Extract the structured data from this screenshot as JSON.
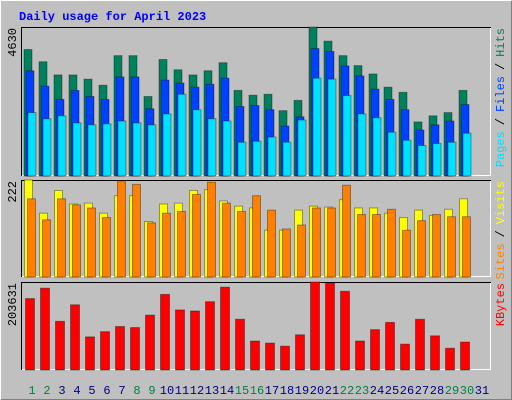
{
  "chart_data": [
    {
      "type": "bar",
      "title": "Daily usage for April 2023",
      "legend_separator": "/",
      "ylim": [
        0,
        4630
      ],
      "yticks": [
        4630
      ],
      "series": [
        {
          "name": "Hits",
          "color": "#00805c",
          "values": [
            3930,
            3550,
            3140,
            3140,
            3010,
            2820,
            3740,
            3740,
            2470,
            3620,
            3300,
            3140,
            3270,
            3520,
            2660,
            2510,
            2540,
            2030,
            2350,
            4630,
            4190,
            3740,
            3430,
            3170,
            2760,
            2600,
            1680,
            1870,
            1970,
            2660,
            null
          ]
        },
        {
          "name": "Files",
          "color": "#0040ff",
          "values": [
            3270,
            2790,
            2380,
            2660,
            2470,
            2380,
            3080,
            3080,
            2090,
            2980,
            2890,
            2760,
            2850,
            3040,
            2160,
            2190,
            2060,
            1550,
            1840,
            3960,
            3870,
            3420,
            3110,
            2700,
            2380,
            2060,
            1430,
            1590,
            1710,
            2220,
            null
          ]
        },
        {
          "name": "Pages",
          "color": "#00e0ff",
          "values": [
            1970,
            1780,
            1870,
            1650,
            1590,
            1620,
            1710,
            1650,
            1590,
            1930,
            2540,
            2060,
            1780,
            1710,
            1050,
            1080,
            1210,
            1050,
            1740,
            3040,
            3010,
            2500,
            1930,
            1810,
            1360,
            1110,
            950,
            1010,
            1050,
            1330,
            null
          ]
        }
      ]
    },
    {
      "type": "bar",
      "legend_separator": "/",
      "ylim": [
        0,
        222
      ],
      "yticks": [
        222
      ],
      "series": [
        {
          "name": "Visits",
          "color": "#ffff00",
          "values": [
            222,
            146,
            198,
            167,
            169,
            146,
            186,
            186,
            127,
            167,
            169,
            198,
            200,
            174,
            162,
            158,
            107,
            107,
            153,
            162,
            160,
            177,
            158,
            158,
            146,
            136,
            153,
            141,
            155,
            179,
            null
          ]
        },
        {
          "name": "Sites",
          "color": "#ff8000",
          "values": [
            179,
            131,
            179,
            165,
            158,
            136,
            220,
            212,
            124,
            146,
            150,
            189,
            217,
            169,
            150,
            186,
            153,
            110,
            119,
            158,
            158,
            210,
            143,
            143,
            155,
            107,
            129,
            143,
            138,
            138,
            null
          ]
        }
      ]
    },
    {
      "type": "bar",
      "ylim": [
        0,
        203631
      ],
      "yticks": [
        203631
      ],
      "categories": [
        "1",
        "2",
        "3",
        "4",
        "5",
        "6",
        "7",
        "8",
        "9",
        "10",
        "11",
        "12",
        "13",
        "14",
        "15",
        "16",
        "17",
        "18",
        "19",
        "20",
        "21",
        "22",
        "23",
        "24",
        "25",
        "26",
        "27",
        "28",
        "29",
        "30",
        "31"
      ],
      "category_colors": [
        "#008040",
        "#008040",
        "#000080",
        "#000080",
        "#000080",
        "#000080",
        "#000080",
        "#008040",
        "#008040",
        "#000080",
        "#000080",
        "#000080",
        "#000080",
        "#000080",
        "#008040",
        "#008040",
        "#000080",
        "#000080",
        "#000080",
        "#000080",
        "#000080",
        "#008040",
        "#008040",
        "#000080",
        "#000080",
        "#000080",
        "#000080",
        "#000080",
        "#008040",
        "#008040",
        "#000080"
      ],
      "series": [
        {
          "name": "KBytes",
          "color": "#ff0000",
          "values": [
            165300,
            189300,
            112600,
            150900,
            76700,
            88700,
            100600,
            98200,
            127000,
            174900,
            139000,
            136600,
            158100,
            191700,
            117400,
            67100,
            62300,
            55100,
            81500,
            203631,
            200900,
            182100,
            67100,
            93400,
            110200,
            59900,
            117400,
            79100,
            50300,
            64700,
            null
          ]
        }
      ]
    }
  ]
}
